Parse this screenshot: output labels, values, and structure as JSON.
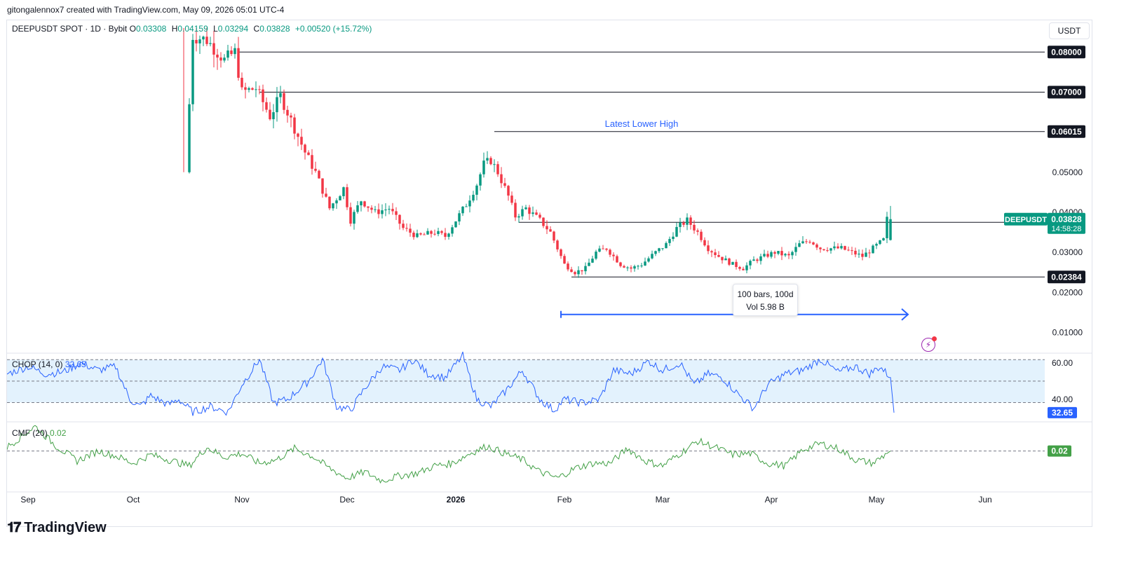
{
  "caption": "gitongalennox7 created with TradingView.com, May 09, 2026 05:01 UTC-4",
  "legend": {
    "symbol": "DEEPUSDT SPOT · 1D · Bybit",
    "o_label": "O",
    "o_value": "0.03308",
    "h_label": "H",
    "h_value": "0.04159",
    "l_label": "L",
    "l_value": "0.03294",
    "c_label": "C",
    "c_value": "0.03828",
    "change": "+0.00520 (+15.72%)"
  },
  "currency_button": "USDT",
  "colors": {
    "up": "#089981",
    "down": "#f23645",
    "indicator": "#2962ff",
    "cmf": "#43a047",
    "chop_bg": "#e3f2fd",
    "measure": "#2962ff"
  },
  "chart_data": [
    {
      "type": "candlestick",
      "title": "DEEPUSDT SPOT · 1D · Bybit",
      "ylim": [
        0.005,
        0.086
      ],
      "y_ticks": [
        "0.01000",
        "0.02000",
        "0.03000",
        "0.04000",
        "0.05000"
      ],
      "x_ticks": [
        "Sep",
        "Oct",
        "Nov",
        "Dec",
        "2026",
        "Feb",
        "Mar",
        "Apr",
        "May",
        "Jun"
      ],
      "x_tick_days": [
        0,
        30,
        61,
        91,
        122,
        153,
        181,
        212,
        242,
        273
      ],
      "x_range": [
        -6,
        290
      ],
      "first_candle_day": 46,
      "anchors": [
        [
          46,
          0.05
        ],
        [
          48,
          0.084
        ],
        [
          52,
          0.083
        ],
        [
          57,
          0.078
        ],
        [
          60,
          0.08
        ],
        [
          62,
          0.07
        ],
        [
          66,
          0.071
        ],
        [
          70,
          0.064
        ],
        [
          73,
          0.069
        ],
        [
          76,
          0.063
        ],
        [
          80,
          0.055
        ],
        [
          83,
          0.05
        ],
        [
          87,
          0.041
        ],
        [
          91,
          0.046
        ],
        [
          93,
          0.038
        ],
        [
          96,
          0.043
        ],
        [
          100,
          0.04
        ],
        [
          104,
          0.041
        ],
        [
          108,
          0.036
        ],
        [
          112,
          0.034
        ],
        [
          117,
          0.035
        ],
        [
          120,
          0.034
        ],
        [
          123,
          0.038
        ],
        [
          126,
          0.042
        ],
        [
          129,
          0.047
        ],
        [
          131,
          0.052
        ],
        [
          133,
          0.053
        ],
        [
          135,
          0.05
        ],
        [
          138,
          0.044
        ],
        [
          140,
          0.039
        ],
        [
          143,
          0.041
        ],
        [
          147,
          0.038
        ],
        [
          150,
          0.035
        ],
        [
          152,
          0.031
        ],
        [
          154,
          0.027
        ],
        [
          157,
          0.025
        ],
        [
          160,
          0.026
        ],
        [
          163,
          0.03
        ],
        [
          166,
          0.031
        ],
        [
          170,
          0.027
        ],
        [
          173,
          0.026
        ],
        [
          176,
          0.027
        ],
        [
          180,
          0.03
        ],
        [
          183,
          0.032
        ],
        [
          186,
          0.036
        ],
        [
          189,
          0.038
        ],
        [
          192,
          0.035
        ],
        [
          195,
          0.031
        ],
        [
          198,
          0.029
        ],
        [
          202,
          0.027
        ],
        [
          205,
          0.026
        ],
        [
          208,
          0.028
        ],
        [
          211,
          0.029
        ],
        [
          214,
          0.03
        ],
        [
          218,
          0.029
        ],
        [
          221,
          0.032
        ],
        [
          224,
          0.033
        ],
        [
          227,
          0.031
        ],
        [
          230,
          0.031
        ],
        [
          233,
          0.031
        ],
        [
          236,
          0.03
        ],
        [
          239,
          0.029
        ],
        [
          242,
          0.031
        ],
        [
          245,
          0.03308
        ],
        [
          246,
          0.03828
        ]
      ],
      "last_candle": {
        "o": 0.03308,
        "h": 0.04159,
        "l": 0.03294,
        "c": 0.03828
      },
      "h_lines": [
        {
          "price": 0.08,
          "label": "0.08000",
          "start_day": 60
        },
        {
          "price": 0.07,
          "label": "0.07000",
          "start_day": 66
        },
        {
          "price": 0.06015,
          "label": "0.06015",
          "start_day": 133
        },
        {
          "price": 0.0375,
          "label": "",
          "start_day": 140
        },
        {
          "price": 0.02384,
          "label": "0.02384",
          "start_day": 155
        }
      ],
      "annotation": "Latest Lower High",
      "price_tag": {
        "symbol": "DEEPUSDT",
        "price": "0.03828",
        "countdown": "14:58:28"
      },
      "measure": {
        "from_day": 152,
        "to_day": 251,
        "price": 0.0145,
        "tooltip_line1": "100 bars, 100d",
        "tooltip_line2": "Vol 5.98 B"
      }
    },
    {
      "type": "line",
      "name": "CHOP (14, 0)",
      "value_label": "32.65",
      "ylim": [
        28,
        65
      ],
      "y_ticks": [
        "60.00",
        "40.00"
      ],
      "levels": [
        61.8,
        50,
        38.2
      ],
      "anchors": [
        [
          -6,
          54
        ],
        [
          0,
          58
        ],
        [
          5,
          54
        ],
        [
          10,
          55
        ],
        [
          15,
          60
        ],
        [
          20,
          56
        ],
        [
          25,
          58
        ],
        [
          29,
          40
        ],
        [
          32,
          36
        ],
        [
          35,
          42
        ],
        [
          40,
          37
        ],
        [
          43,
          40
        ],
        [
          47,
          33
        ],
        [
          52,
          36
        ],
        [
          57,
          33
        ],
        [
          61,
          48
        ],
        [
          66,
          62
        ],
        [
          70,
          38
        ],
        [
          74,
          40
        ],
        [
          80,
          50
        ],
        [
          84,
          62
        ],
        [
          88,
          36
        ],
        [
          92,
          34
        ],
        [
          96,
          46
        ],
        [
          101,
          58
        ],
        [
          106,
          56
        ],
        [
          110,
          62
        ],
        [
          114,
          54
        ],
        [
          119,
          52
        ],
        [
          124,
          64
        ],
        [
          128,
          40
        ],
        [
          132,
          36
        ],
        [
          136,
          44
        ],
        [
          141,
          56
        ],
        [
          146,
          40
        ],
        [
          150,
          34
        ],
        [
          153,
          40
        ],
        [
          158,
          38
        ],
        [
          163,
          40
        ],
        [
          167,
          56
        ],
        [
          172,
          54
        ],
        [
          177,
          61
        ],
        [
          181,
          56
        ],
        [
          186,
          60
        ],
        [
          190,
          48
        ],
        [
          194,
          54
        ],
        [
          198,
          52
        ],
        [
          203,
          42
        ],
        [
          207,
          35
        ],
        [
          211,
          48
        ],
        [
          216,
          54
        ],
        [
          221,
          56
        ],
        [
          226,
          62
        ],
        [
          231,
          55
        ],
        [
          236,
          58
        ],
        [
          240,
          54
        ],
        [
          243,
          58
        ],
        [
          246,
          52
        ],
        [
          247,
          32.65
        ]
      ],
      "jitter": 2.2
    },
    {
      "type": "line",
      "name": "CMF (20)",
      "value_label": "0.02",
      "ylim": [
        -0.3,
        0.25
      ],
      "levels": [
        0.02
      ],
      "anchors": [
        [
          -6,
          0.05
        ],
        [
          2,
          0.22
        ],
        [
          8,
          0.06
        ],
        [
          14,
          -0.06
        ],
        [
          20,
          0.02
        ],
        [
          25,
          -0.02
        ],
        [
          30,
          -0.08
        ],
        [
          35,
          -0.01
        ],
        [
          40,
          -0.05
        ],
        [
          46,
          -0.1
        ],
        [
          51,
          0.05
        ],
        [
          56,
          -0.03
        ],
        [
          61,
          0.0
        ],
        [
          66,
          -0.08
        ],
        [
          71,
          -0.05
        ],
        [
          76,
          0.04
        ],
        [
          81,
          -0.02
        ],
        [
          86,
          -0.12
        ],
        [
          91,
          -0.2
        ],
        [
          96,
          -0.15
        ],
        [
          101,
          -0.22
        ],
        [
          106,
          -0.18
        ],
        [
          111,
          -0.16
        ],
        [
          116,
          -0.1
        ],
        [
          121,
          -0.08
        ],
        [
          126,
          0.0
        ],
        [
          131,
          0.06
        ],
        [
          136,
          0.0
        ],
        [
          141,
          -0.05
        ],
        [
          146,
          -0.15
        ],
        [
          151,
          -0.2
        ],
        [
          156,
          -0.12
        ],
        [
          161,
          -0.08
        ],
        [
          166,
          -0.08
        ],
        [
          171,
          0.04
        ],
        [
          176,
          -0.06
        ],
        [
          181,
          -0.1
        ],
        [
          186,
          0.0
        ],
        [
          191,
          0.1
        ],
        [
          196,
          0.05
        ],
        [
          201,
          -0.01
        ],
        [
          206,
          0.0
        ],
        [
          211,
          -0.08
        ],
        [
          216,
          -0.1
        ],
        [
          221,
          0.03
        ],
        [
          226,
          0.08
        ],
        [
          231,
          0.04
        ],
        [
          236,
          -0.05
        ],
        [
          241,
          -0.08
        ],
        [
          246,
          0.02
        ]
      ],
      "jitter": 0.03
    }
  ],
  "time_axis": [
    "Sep",
    "Oct",
    "Nov",
    "Dec",
    "2026",
    "Feb",
    "Mar",
    "Apr",
    "May",
    "Jun"
  ],
  "brand": "TradingView"
}
